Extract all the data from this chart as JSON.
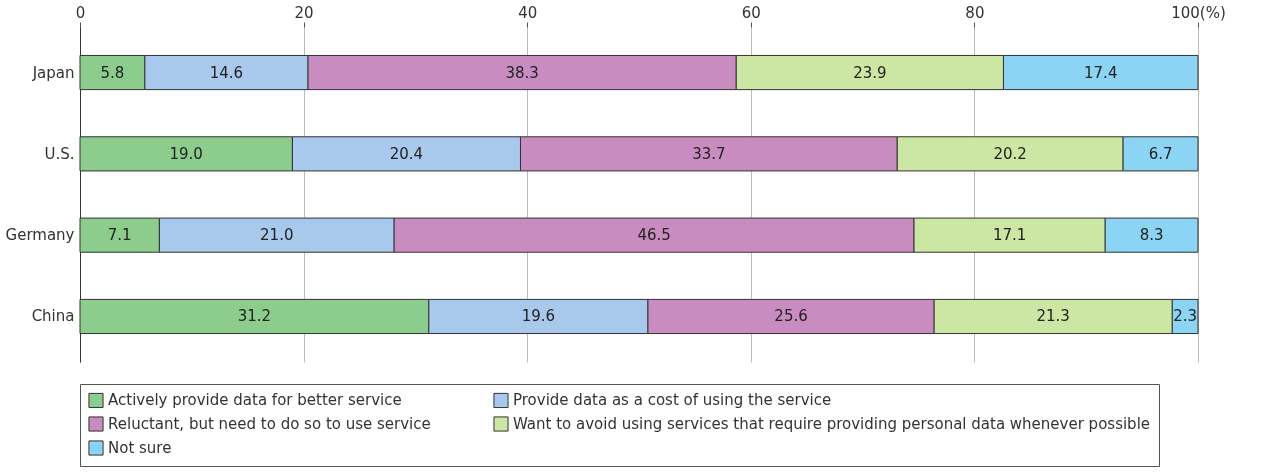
{
  "chart_data": {
    "type": "bar",
    "orientation": "horizontal",
    "stacked": true,
    "grid": "x",
    "legend": "bottom",
    "categories": [
      "Japan",
      "U.S.",
      "Germany",
      "China"
    ],
    "xlim": [
      0,
      100
    ],
    "xticks": [
      0,
      20,
      40,
      60,
      80,
      {
        "value": 100,
        "label": "100(%)"
      }
    ],
    "series": [
      {
        "name": "Actively provide data for better service",
        "color": "#8ccc8c",
        "values": [
          5.8,
          19.0,
          7.1,
          31.2
        ],
        "value_labels": [
          "5.8",
          "19.0",
          "7.1",
          "31.2"
        ]
      },
      {
        "name": "Provide data as a cost of using the service",
        "color": "#a8c8ec",
        "values": [
          14.6,
          20.4,
          21.0,
          19.6
        ],
        "value_labels": [
          "14.6",
          "20.4",
          "21.0",
          "19.6"
        ]
      },
      {
        "name": "Reluctant, but need to do so to use service",
        "color": "#c88cc0",
        "values": [
          38.3,
          33.7,
          46.5,
          25.6
        ],
        "value_labels": [
          "38.3",
          "33.7",
          "46.5",
          "25.6"
        ]
      },
      {
        "name": "Want to avoid using services that require providing personal data whenever possible",
        "color": "#cce6a4",
        "values": [
          23.9,
          20.2,
          17.1,
          21.3
        ],
        "value_labels": [
          "23.9",
          "20.2",
          "17.1",
          "21.3"
        ]
      },
      {
        "name": "Not sure",
        "color": "#8cd4f4",
        "values": [
          17.4,
          6.7,
          8.3,
          2.3
        ],
        "value_labels": [
          "17.4",
          "6.7",
          "8.3",
          "2.3"
        ]
      }
    ]
  }
}
